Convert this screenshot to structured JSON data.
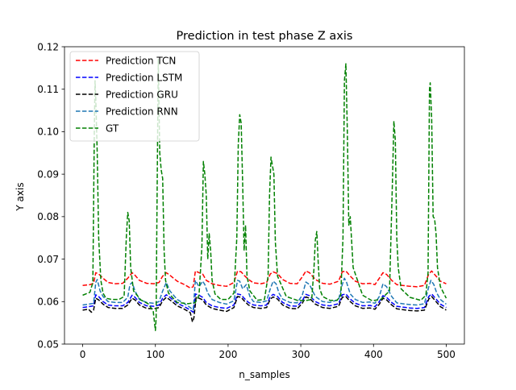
{
  "chart_data": {
    "type": "line",
    "title": "Prediction in test phase Z axis",
    "xlabel": "n_samples",
    "ylabel": "Y axis",
    "xlim": [
      -25,
      525
    ],
    "ylim": [
      0.05,
      0.12
    ],
    "xticks": [
      0,
      100,
      200,
      300,
      400,
      500
    ],
    "yticks": [
      0.05,
      0.06,
      0.07,
      0.08,
      0.09,
      0.1,
      0.11,
      0.12
    ],
    "grid": false,
    "legend_position": "top-left",
    "series": [
      {
        "name": "Prediction TCN",
        "color": "#ff0000",
        "x": [
          0,
          10,
          15,
          18,
          22,
          28,
          35,
          45,
          55,
          62,
          68,
          72,
          78,
          88,
          98,
          105,
          110,
          115,
          120,
          130,
          140,
          148,
          152,
          155,
          160,
          165,
          170,
          178,
          188,
          198,
          208,
          213,
          218,
          222,
          228,
          235,
          245,
          253,
          258,
          262,
          268,
          275,
          285,
          295,
          302,
          307,
          312,
          320,
          330,
          340,
          352,
          357,
          362,
          368,
          375,
          385,
          395,
          402,
          408,
          413,
          418,
          425,
          432,
          440,
          450,
          460,
          470,
          476,
          480,
          485,
          492,
          500
        ],
        "values": [
          0.0638,
          0.064,
          0.0643,
          0.0668,
          0.0665,
          0.0655,
          0.0645,
          0.0642,
          0.0643,
          0.0655,
          0.0668,
          0.0662,
          0.065,
          0.0643,
          0.0642,
          0.0645,
          0.066,
          0.0668,
          0.0662,
          0.0648,
          0.064,
          0.0632,
          0.0635,
          0.0672,
          0.0668,
          0.0665,
          0.065,
          0.0642,
          0.0638,
          0.0636,
          0.0645,
          0.0672,
          0.067,
          0.0662,
          0.0652,
          0.0644,
          0.0642,
          0.0645,
          0.0665,
          0.067,
          0.0666,
          0.0652,
          0.0643,
          0.0642,
          0.0658,
          0.0672,
          0.0668,
          0.0652,
          0.0643,
          0.0641,
          0.0648,
          0.067,
          0.0672,
          0.066,
          0.0648,
          0.0642,
          0.0643,
          0.064,
          0.0655,
          0.0668,
          0.0664,
          0.065,
          0.064,
          0.0638,
          0.0636,
          0.0635,
          0.0638,
          0.0665,
          0.0672,
          0.0662,
          0.0648,
          0.0642
        ]
      },
      {
        "name": "Prediction LSTM",
        "color": "#0000ff",
        "x": [
          0,
          8,
          15,
          18,
          22,
          28,
          35,
          45,
          55,
          62,
          68,
          72,
          78,
          88,
          98,
          105,
          110,
          115,
          120,
          130,
          140,
          148,
          152,
          155,
          160,
          165,
          170,
          178,
          188,
          198,
          208,
          213,
          218,
          222,
          228,
          235,
          245,
          253,
          258,
          262,
          268,
          275,
          285,
          295,
          302,
          307,
          312,
          320,
          330,
          340,
          352,
          357,
          362,
          368,
          375,
          385,
          395,
          402,
          408,
          413,
          418,
          425,
          432,
          440,
          450,
          460,
          470,
          476,
          480,
          485,
          492,
          500
        ],
        "values": [
          0.0586,
          0.0588,
          0.059,
          0.0616,
          0.0612,
          0.06,
          0.0592,
          0.059,
          0.059,
          0.0598,
          0.0615,
          0.061,
          0.0598,
          0.059,
          0.0589,
          0.0592,
          0.0608,
          0.0616,
          0.061,
          0.0596,
          0.0588,
          0.058,
          0.0575,
          0.0618,
          0.0615,
          0.061,
          0.0598,
          0.059,
          0.0586,
          0.0584,
          0.0592,
          0.0618,
          0.0616,
          0.0608,
          0.0598,
          0.0592,
          0.059,
          0.0592,
          0.0612,
          0.0617,
          0.0612,
          0.0598,
          0.059,
          0.0589,
          0.0602,
          0.0617,
          0.0614,
          0.06,
          0.0592,
          0.059,
          0.0595,
          0.0616,
          0.0618,
          0.0606,
          0.0596,
          0.059,
          0.0591,
          0.0588,
          0.06,
          0.0614,
          0.061,
          0.0598,
          0.0589,
          0.0587,
          0.0585,
          0.0584,
          0.0586,
          0.0612,
          0.0618,
          0.0608,
          0.0594,
          0.0586
        ]
      },
      {
        "name": "Prediction GRU",
        "color": "#000000",
        "x": [
          0,
          8,
          12,
          15,
          18,
          22,
          28,
          35,
          45,
          55,
          62,
          68,
          72,
          78,
          88,
          98,
          105,
          110,
          115,
          120,
          130,
          140,
          148,
          151,
          153,
          156,
          160,
          165,
          170,
          178,
          188,
          198,
          208,
          213,
          218,
          222,
          228,
          235,
          245,
          253,
          258,
          262,
          268,
          275,
          285,
          295,
          302,
          307,
          312,
          320,
          330,
          340,
          352,
          357,
          362,
          368,
          375,
          385,
          395,
          402,
          408,
          413,
          418,
          425,
          432,
          440,
          450,
          460,
          470,
          476,
          480,
          485,
          492,
          500
        ],
        "values": [
          0.058,
          0.0582,
          0.0575,
          0.058,
          0.0608,
          0.0604,
          0.0594,
          0.0586,
          0.0584,
          0.0584,
          0.0592,
          0.0608,
          0.0604,
          0.0592,
          0.0584,
          0.0583,
          0.0586,
          0.0602,
          0.061,
          0.0604,
          0.059,
          0.0582,
          0.0574,
          0.0552,
          0.0562,
          0.061,
          0.0608,
          0.0604,
          0.0592,
          0.0584,
          0.058,
          0.0577,
          0.0586,
          0.0612,
          0.061,
          0.0602,
          0.0592,
          0.0586,
          0.0584,
          0.0586,
          0.0606,
          0.0611,
          0.0606,
          0.0592,
          0.0584,
          0.0583,
          0.0596,
          0.0611,
          0.0608,
          0.0594,
          0.0586,
          0.0584,
          0.0589,
          0.061,
          0.0612,
          0.06,
          0.059,
          0.0584,
          0.0585,
          0.0582,
          0.0594,
          0.0608,
          0.0604,
          0.0592,
          0.0583,
          0.0581,
          0.0579,
          0.0578,
          0.058,
          0.0606,
          0.0612,
          0.0602,
          0.0588,
          0.058
        ]
      },
      {
        "name": "Prediction RNN",
        "color": "#1f77b4",
        "x": [
          0,
          8,
          15,
          18,
          20,
          24,
          28,
          35,
          45,
          55,
          62,
          65,
          68,
          72,
          78,
          88,
          98,
          105,
          110,
          115,
          120,
          130,
          140,
          148,
          152,
          155,
          160,
          165,
          168,
          172,
          178,
          188,
          198,
          208,
          213,
          216,
          220,
          225,
          230,
          235,
          245,
          253,
          258,
          262,
          266,
          270,
          275,
          285,
          295,
          302,
          307,
          312,
          320,
          330,
          340,
          352,
          357,
          360,
          363,
          368,
          375,
          385,
          395,
          402,
          408,
          413,
          418,
          425,
          432,
          440,
          450,
          460,
          470,
          476,
          479,
          483,
          487,
          492,
          500
        ],
        "values": [
          0.0592,
          0.0594,
          0.0596,
          0.0645,
          0.0652,
          0.0625,
          0.0612,
          0.06,
          0.0598,
          0.0598,
          0.061,
          0.064,
          0.0645,
          0.0625,
          0.0605,
          0.0598,
          0.0596,
          0.06,
          0.0625,
          0.0645,
          0.0625,
          0.0605,
          0.0595,
          0.0586,
          0.058,
          0.065,
          0.0635,
          0.0648,
          0.064,
          0.062,
          0.0605,
          0.0598,
          0.0594,
          0.0602,
          0.065,
          0.0648,
          0.063,
          0.064,
          0.0612,
          0.06,
          0.0598,
          0.0602,
          0.063,
          0.0648,
          0.0642,
          0.062,
          0.0606,
          0.0598,
          0.0597,
          0.0615,
          0.0646,
          0.064,
          0.0612,
          0.06,
          0.0598,
          0.0605,
          0.064,
          0.0655,
          0.0645,
          0.0618,
          0.0605,
          0.0598,
          0.0599,
          0.0596,
          0.0612,
          0.0642,
          0.0635,
          0.0612,
          0.0597,
          0.0595,
          0.0593,
          0.0592,
          0.0595,
          0.0635,
          0.065,
          0.064,
          0.062,
          0.0605,
          0.0594
        ]
      },
      {
        "name": "GT",
        "color": "#008000",
        "x": [
          0,
          10,
          14,
          16,
          17,
          18,
          20,
          22,
          25,
          28,
          32,
          40,
          50,
          57,
          60,
          62,
          64,
          66,
          70,
          80,
          90,
          97,
          100,
          101,
          102,
          104,
          106,
          108,
          110,
          112,
          114,
          118,
          130,
          145,
          155,
          160,
          164,
          166,
          168,
          170,
          172,
          174,
          176,
          178,
          182,
          190,
          200,
          208,
          212,
          214,
          216,
          218,
          220,
          222,
          224,
          226,
          230,
          240,
          250,
          255,
          257,
          259,
          261,
          263,
          265,
          268,
          280,
          295,
          305,
          315,
          318,
          320,
          322,
          324,
          326,
          330,
          340,
          350,
          355,
          358,
          360,
          362,
          364,
          366,
          368,
          372,
          385,
          398,
          410,
          422,
          426,
          428,
          430,
          432,
          434,
          438,
          450,
          465,
          472,
          475,
          477,
          478,
          480,
          482,
          484,
          486,
          488,
          492,
          500
        ],
        "values": [
          0.0615,
          0.0622,
          0.0645,
          0.1,
          0.112,
          0.108,
          0.095,
          0.075,
          0.065,
          0.062,
          0.0608,
          0.0605,
          0.0605,
          0.0612,
          0.075,
          0.081,
          0.079,
          0.068,
          0.0625,
          0.0604,
          0.0595,
          0.0578,
          0.0532,
          0.056,
          0.078,
          0.117,
          0.095,
          0.091,
          0.089,
          0.072,
          0.065,
          0.062,
          0.0598,
          0.0595,
          0.0598,
          0.0615,
          0.073,
          0.093,
          0.09,
          0.085,
          0.07,
          0.076,
          0.072,
          0.065,
          0.0618,
          0.0605,
          0.0605,
          0.062,
          0.075,
          0.097,
          0.104,
          0.102,
          0.088,
          0.072,
          0.078,
          0.066,
          0.0625,
          0.0603,
          0.0605,
          0.066,
          0.085,
          0.094,
          0.092,
          0.09,
          0.074,
          0.066,
          0.0612,
          0.0603,
          0.0602,
          0.0605,
          0.0675,
          0.0745,
          0.0765,
          0.069,
          0.063,
          0.0612,
          0.0603,
          0.0603,
          0.0615,
          0.075,
          0.112,
          0.116,
          0.1,
          0.078,
          0.08,
          0.068,
          0.0615,
          0.0602,
          0.0605,
          0.0625,
          0.088,
          0.1025,
          0.098,
          0.075,
          0.068,
          0.063,
          0.061,
          0.0603,
          0.0615,
          0.0668,
          0.11,
          0.1115,
          0.103,
          0.08,
          0.0795,
          0.076,
          0.068,
          0.0635,
          0.0608
        ]
      }
    ]
  }
}
